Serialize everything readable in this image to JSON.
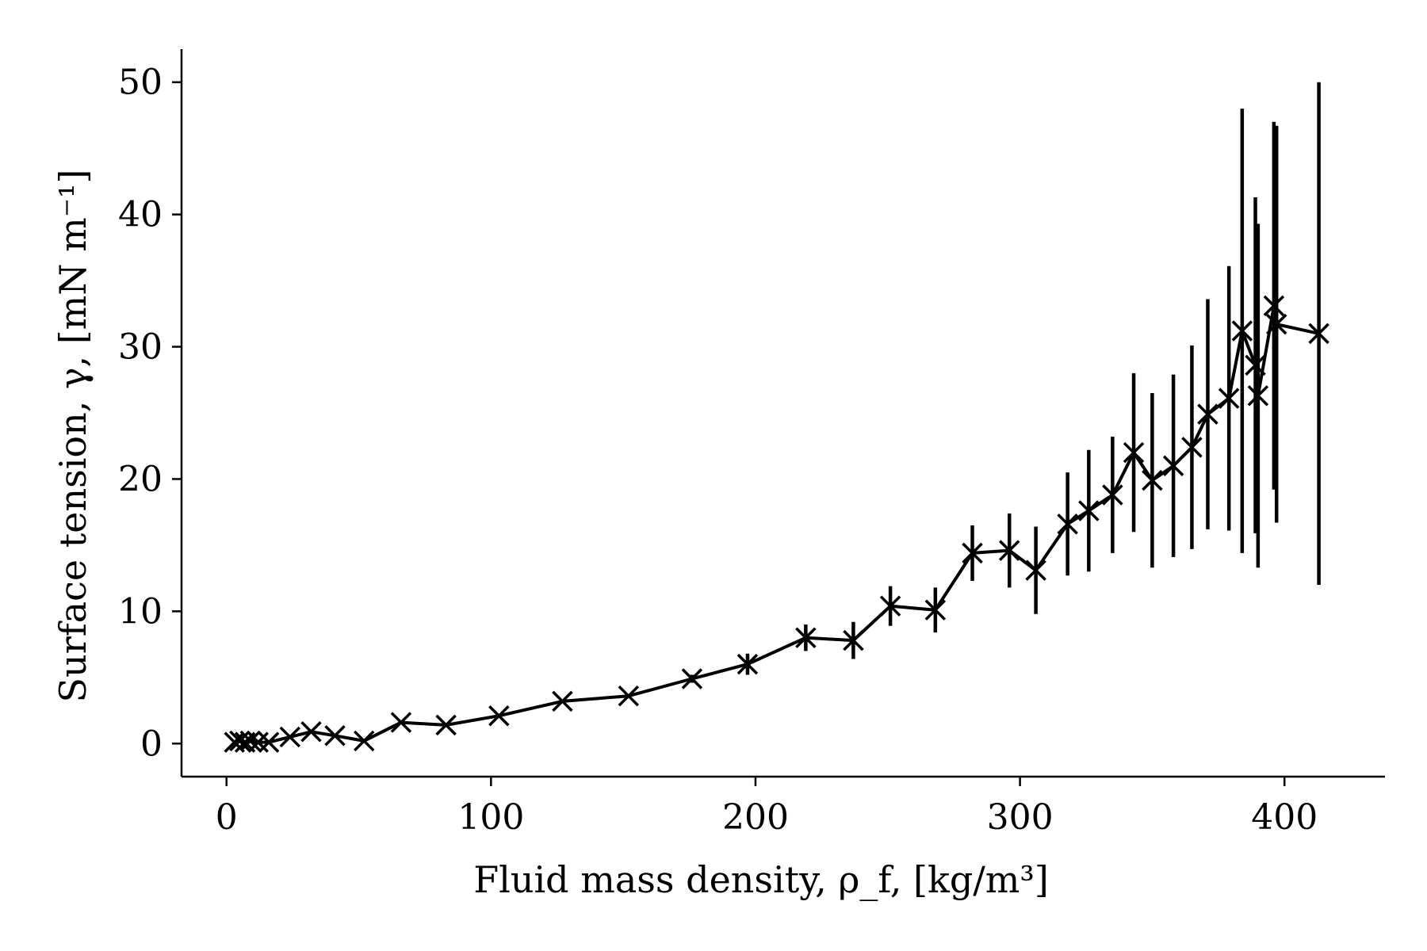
{
  "chart_data": {
    "type": "line",
    "xlabel": "Fluid mass density, ρ_f, [kg/m³]",
    "ylabel": "Surface tension, γ, [mN m⁻¹]",
    "xlim": [
      -17,
      438
    ],
    "ylim": [
      -2.5,
      52.5
    ],
    "xticks": [
      0,
      100,
      200,
      300,
      400
    ],
    "yticks": [
      0,
      10,
      20,
      30,
      40,
      50
    ],
    "xtick_labels": [
      "0",
      "100",
      "200",
      "300",
      "400"
    ],
    "ytick_labels": [
      "0",
      "10",
      "20",
      "30",
      "40",
      "50"
    ],
    "grid": false,
    "legend": "none",
    "marker": "x",
    "color": "#000000",
    "series": [
      {
        "points": [
          {
            "x": 3,
            "y": 0.1,
            "yerr": 0
          },
          {
            "x": 5,
            "y": 0.2,
            "yerr": 0
          },
          {
            "x": 7,
            "y": 0.1,
            "yerr": 0
          },
          {
            "x": 9,
            "y": 0.2,
            "yerr": 0
          },
          {
            "x": 12,
            "y": 0.1,
            "yerr": 0
          },
          {
            "x": 16,
            "y": 0.1,
            "yerr": 0
          },
          {
            "x": 24,
            "y": 0.5,
            "yerr": 0
          },
          {
            "x": 32,
            "y": 0.9,
            "yerr": 0
          },
          {
            "x": 41,
            "y": 0.6,
            "yerr": 0
          },
          {
            "x": 52,
            "y": 0.2,
            "yerr": 0
          },
          {
            "x": 66,
            "y": 1.6,
            "yerr": 0
          },
          {
            "x": 83,
            "y": 1.4,
            "yerr": 0
          },
          {
            "x": 103,
            "y": 2.1,
            "yerr": 0
          },
          {
            "x": 127,
            "y": 3.2,
            "yerr": 0
          },
          {
            "x": 152,
            "y": 3.6,
            "yerr": 0
          },
          {
            "x": 176,
            "y": 4.9,
            "yerr": 0.3
          },
          {
            "x": 197,
            "y": 6.0,
            "yerr": 0.8
          },
          {
            "x": 219,
            "y": 8.0,
            "yerr": 1.0
          },
          {
            "x": 237,
            "y": 7.8,
            "yerr": 1.4
          },
          {
            "x": 251,
            "y": 10.4,
            "yerr": 1.5
          },
          {
            "x": 268,
            "y": 10.1,
            "yerr": 1.7
          },
          {
            "x": 282,
            "y": 14.4,
            "yerr": 2.1
          },
          {
            "x": 296,
            "y": 14.6,
            "yerr": 2.8
          },
          {
            "x": 306,
            "y": 13.1,
            "yerr": 3.3
          },
          {
            "x": 318,
            "y": 16.6,
            "yerr": 3.9
          },
          {
            "x": 326,
            "y": 17.6,
            "yerr": 4.6
          },
          {
            "x": 335,
            "y": 18.8,
            "yerr": 4.4
          },
          {
            "x": 343,
            "y": 22.0,
            "yerr": 6.0
          },
          {
            "x": 350,
            "y": 19.9,
            "yerr": 6.6
          },
          {
            "x": 358,
            "y": 21.0,
            "yerr": 6.9
          },
          {
            "x": 365,
            "y": 22.4,
            "yerr": 7.7
          },
          {
            "x": 371,
            "y": 24.9,
            "yerr": 8.7
          },
          {
            "x": 379,
            "y": 26.1,
            "yerr": 10.0
          },
          {
            "x": 384,
            "y": 31.2,
            "yerr": 16.8
          },
          {
            "x": 389,
            "y": 28.6,
            "yerr": 12.7
          },
          {
            "x": 390,
            "y": 26.3,
            "yerr": 13.0
          },
          {
            "x": 396,
            "y": 33.1,
            "yerr": 13.9
          },
          {
            "x": 397,
            "y": 31.7,
            "yerr": 15.0
          },
          {
            "x": 413,
            "y": 31.0,
            "yerr": 19.0
          }
        ]
      }
    ]
  }
}
